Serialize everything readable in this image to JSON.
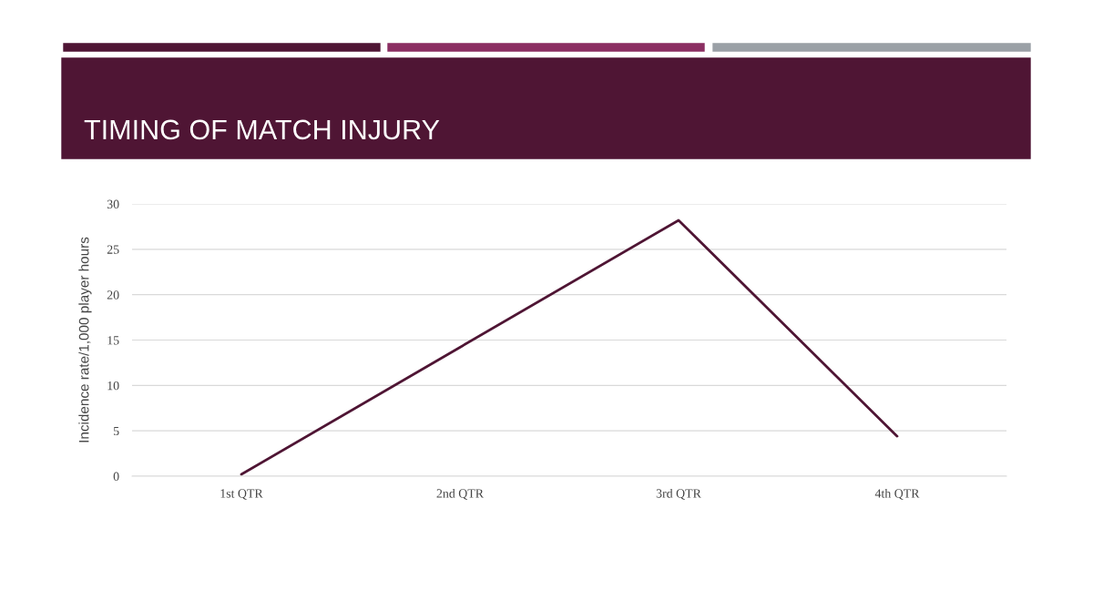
{
  "chart_data": {
    "type": "line",
    "title": "TIMING OF MATCH INJURY",
    "ylabel": "Incidence rate/1,000 player hours",
    "categories": [
      "1st QTR",
      "2nd QTR",
      "3rd QTR",
      "4th QTR"
    ],
    "series": [
      {
        "color": "#4f1534",
        "values": [
          0.2,
          14.2,
          28.2,
          4.4
        ]
      }
    ],
    "ylim": [
      0,
      30
    ],
    "yticks": [
      0,
      5,
      10,
      15,
      20,
      25,
      30
    ],
    "grid": "y",
    "marker": "none",
    "line_style": "solid"
  }
}
